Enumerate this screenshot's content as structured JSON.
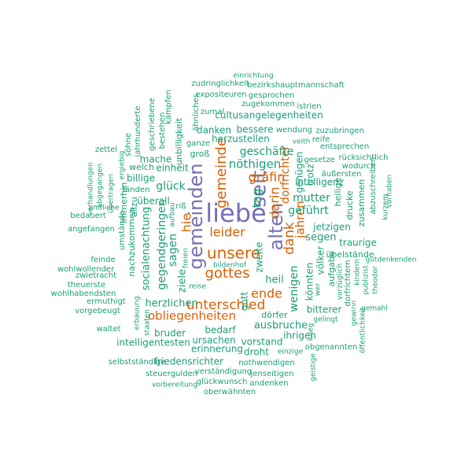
{
  "colors": {
    "purple": "#7570b3",
    "orange": "#d95f02",
    "teal": "#1b9e77",
    "background": "#ffffff"
  },
  "words": [
    {
      "text": "liebe",
      "weight": 30,
      "color": "purple",
      "rotate": false
    },
    {
      "text": "seit",
      "weight": 24,
      "color": "purple",
      "rotate": true
    },
    {
      "text": "gemeinden",
      "weight": 22,
      "color": "purple",
      "rotate": true
    },
    {
      "text": "alten",
      "weight": 22,
      "color": "purple",
      "rotate": true
    },
    {
      "text": "unsere",
      "weight": 18,
      "color": "orange",
      "rotate": false
    },
    {
      "text": "gemeinde",
      "weight": 16,
      "color": "orange",
      "rotate": true
    },
    {
      "text": "gottes",
      "weight": 16,
      "color": "orange",
      "rotate": false
    },
    {
      "text": "unterschied",
      "weight": 15,
      "color": "orange",
      "rotate": false
    },
    {
      "text": "dank",
      "weight": 15,
      "color": "orange",
      "rotate": true
    },
    {
      "text": "leider",
      "weight": 14,
      "color": "orange",
      "rotate": false
    },
    {
      "text": "ende",
      "weight": 14,
      "color": "orange",
      "rotate": false
    },
    {
      "text": "darin",
      "weight": 14,
      "color": "orange",
      "rotate": true
    },
    {
      "text": "gräfin",
      "weight": 14,
      "color": "orange",
      "rotate": false
    },
    {
      "text": "hie",
      "weight": 14,
      "color": "orange",
      "rotate": true
    },
    {
      "text": "obliegenheiten",
      "weight": 13,
      "color": "orange",
      "rotate": false
    },
    {
      "text": "jahren",
      "weight": 13,
      "color": "orange",
      "rotate": true
    },
    {
      "text": "dorfrichter",
      "weight": 12,
      "color": "orange",
      "rotate": true
    },
    {
      "text": "tag",
      "weight": 13,
      "color": "teal",
      "rotate": true
    },
    {
      "text": "nöthigen",
      "weight": 13,
      "color": "teal",
      "rotate": false
    },
    {
      "text": "geschäfte",
      "weight": 12,
      "color": "teal",
      "rotate": false
    },
    {
      "text": "glück",
      "weight": 12,
      "color": "teal",
      "rotate": false
    },
    {
      "text": "geführt",
      "weight": 12,
      "color": "teal",
      "rotate": false
    },
    {
      "text": "mutter",
      "weight": 12,
      "color": "teal",
      "rotate": false
    },
    {
      "text": "wenigen",
      "weight": 12,
      "color": "teal",
      "rotate": true
    },
    {
      "text": "gegendgeringen",
      "weight": 12,
      "color": "teal",
      "rotate": true
    },
    {
      "text": "sagen",
      "weight": 12,
      "color": "teal",
      "rotate": true
    },
    {
      "text": "segen",
      "weight": 11,
      "color": "teal",
      "rotate": false
    },
    {
      "text": "ziele",
      "weight": 11,
      "color": "teal",
      "rotate": true
    },
    {
      "text": "heil",
      "weight": 11,
      "color": "teal",
      "rotate": false
    },
    {
      "text": "herzlichen",
      "weight": 11,
      "color": "teal",
      "rotate": false
    },
    {
      "text": "ausbruche",
      "weight": 11,
      "color": "teal",
      "rotate": false
    },
    {
      "text": "socialenachtung",
      "weight": 11,
      "color": "teal",
      "rotate": true
    },
    {
      "text": "intelligentesten",
      "weight": 10,
      "color": "teal",
      "rotate": false
    },
    {
      "text": "vorstand",
      "weight": 10,
      "color": "teal",
      "rotate": false
    },
    {
      "text": "überall",
      "weight": 10,
      "color": "teal",
      "rotate": false
    },
    {
      "text": "herzustellen",
      "weight": 10,
      "color": "teal",
      "rotate": false
    },
    {
      "text": "bessere",
      "weight": 10,
      "color": "teal",
      "rotate": false
    },
    {
      "text": "danken",
      "weight": 10,
      "color": "teal",
      "rotate": false
    },
    {
      "text": "cultusangelegenheiten",
      "weight": 10,
      "color": "teal",
      "rotate": false
    },
    {
      "text": "mache",
      "weight": 10,
      "color": "teal",
      "rotate": false
    },
    {
      "text": "einheit",
      "weight": 10,
      "color": "teal",
      "rotate": false
    },
    {
      "text": "billige",
      "weight": 10,
      "color": "teal",
      "rotate": false
    },
    {
      "text": "könnten",
      "weight": 10,
      "color": "teal",
      "rotate": true
    },
    {
      "text": "völker",
      "weight": 10,
      "color": "teal",
      "rotate": true
    },
    {
      "text": "zweite",
      "weight": 10,
      "color": "teal",
      "rotate": true
    },
    {
      "text": "jetzigen",
      "weight": 10,
      "color": "teal",
      "rotate": false
    },
    {
      "text": "traurige",
      "weight": 10,
      "color": "teal",
      "rotate": false
    },
    {
      "text": "bitterer",
      "weight": 10,
      "color": "teal",
      "rotate": false
    },
    {
      "text": "ihrigen",
      "weight": 10,
      "color": "teal",
      "rotate": false
    },
    {
      "text": "dörfer",
      "weight": 9,
      "color": "teal",
      "rotate": false
    },
    {
      "text": "ursachen",
      "weight": 10,
      "color": "teal",
      "rotate": false
    },
    {
      "text": "erinnerung",
      "weight": 10,
      "color": "teal",
      "rotate": false
    },
    {
      "text": "droht",
      "weight": 10,
      "color": "teal",
      "rotate": false
    },
    {
      "text": "friedensrichter",
      "weight": 10,
      "color": "teal",
      "rotate": false
    },
    {
      "text": "bruder",
      "weight": 10,
      "color": "teal",
      "rotate": false
    },
    {
      "text": "bedarf",
      "weight": 10,
      "color": "teal",
      "rotate": false
    },
    {
      "text": "gott",
      "weight": 10,
      "color": "teal",
      "rotate": true
    },
    {
      "text": "intelligenz",
      "weight": 10,
      "color": "teal",
      "rotate": false
    },
    {
      "text": "genügen",
      "weight": 10,
      "color": "teal",
      "rotate": true
    },
    {
      "text": "trotz",
      "weight": 10,
      "color": "teal",
      "rotate": true
    },
    {
      "text": "groß",
      "weight": 9,
      "color": "teal",
      "rotate": false
    },
    {
      "text": "unbilligkeit",
      "weight": 9,
      "color": "teal",
      "rotate": true
    },
    {
      "text": "übelstände",
      "weight": 9,
      "color": "teal",
      "rotate": false
    },
    {
      "text": "aufgabe",
      "weight": 9,
      "color": "teal",
      "rotate": true
    },
    {
      "text": "heilige",
      "weight": 9,
      "color": "teal",
      "rotate": true
    },
    {
      "text": "drucke",
      "weight": 9,
      "color": "teal",
      "rotate": true
    },
    {
      "text": "zusammen",
      "weight": 9,
      "color": "teal",
      "rotate": true
    },
    {
      "text": "abzuschreiben",
      "weight": 8,
      "color": "teal",
      "rotate": true
    },
    {
      "text": "nachzukommen",
      "weight": 9,
      "color": "teal",
      "rotate": true
    },
    {
      "text": "allzu",
      "weight": 9,
      "color": "teal",
      "rotate": true
    },
    {
      "text": "immerhin",
      "weight": 9,
      "color": "teal",
      "rotate": true
    },
    {
      "text": "welch",
      "weight": 9,
      "color": "teal",
      "rotate": false
    },
    {
      "text": "fänden",
      "weight": 8,
      "color": "teal",
      "rotate": false
    },
    {
      "text": "ganze",
      "weight": 8,
      "color": "teal",
      "rotate": false
    },
    {
      "text": "wendung",
      "weight": 8,
      "color": "teal",
      "rotate": false
    },
    {
      "text": "zuzubringen",
      "weight": 8,
      "color": "teal",
      "rotate": false
    },
    {
      "text": "reife",
      "weight": 8,
      "color": "teal",
      "rotate": false
    },
    {
      "text": "veith",
      "weight": 7,
      "color": "teal",
      "rotate": false
    },
    {
      "text": "entsprechen",
      "weight": 8,
      "color": "teal",
      "rotate": false
    },
    {
      "text": "gesetze",
      "weight": 8,
      "color": "teal",
      "rotate": false
    },
    {
      "text": "rücksichtlich",
      "weight": 8,
      "color": "teal",
      "rotate": false
    },
    {
      "text": "äußersten",
      "weight": 8,
      "color": "teal",
      "rotate": false
    },
    {
      "text": "wodurch",
      "weight": 8,
      "color": "teal",
      "rotate": false
    },
    {
      "text": "zudringlichkeit",
      "weight": 8,
      "color": "teal",
      "rotate": false
    },
    {
      "text": "bezirkshauptmannschaft",
      "weight": 8,
      "color": "teal",
      "rotate": false
    },
    {
      "text": "einrichtung",
      "weight": 7,
      "color": "teal",
      "rotate": false
    },
    {
      "text": "expositeuren",
      "weight": 8,
      "color": "teal",
      "rotate": false
    },
    {
      "text": "gesprochen",
      "weight": 8,
      "color": "teal",
      "rotate": false
    },
    {
      "text": "zugekommen",
      "weight": 8,
      "color": "teal",
      "rotate": false
    },
    {
      "text": "istrien",
      "weight": 8,
      "color": "teal",
      "rotate": false
    },
    {
      "text": "zumal",
      "weight": 8,
      "color": "teal",
      "rotate": false
    },
    {
      "text": "ähnliches",
      "weight": 8,
      "color": "teal",
      "rotate": true
    },
    {
      "text": "kämpfen",
      "weight": 8,
      "color": "teal",
      "rotate": true
    },
    {
      "text": "geschriebene",
      "weight": 8,
      "color": "teal",
      "rotate": true
    },
    {
      "text": "bestehen",
      "weight": 8,
      "color": "teal",
      "rotate": true
    },
    {
      "text": "söhne",
      "weight": 8,
      "color": "teal",
      "rotate": true
    },
    {
      "text": "jahrhunderte",
      "weight": 8,
      "color": "teal",
      "rotate": true
    },
    {
      "text": "ergiebig",
      "weight": 7,
      "color": "teal",
      "rotate": true
    },
    {
      "text": "zettel",
      "weight": 8,
      "color": "teal",
      "rotate": false
    },
    {
      "text": "verhandlungen",
      "weight": 7,
      "color": "teal",
      "rotate": true
    },
    {
      "text": "abgegangen",
      "weight": 7,
      "color": "teal",
      "rotate": true
    },
    {
      "text": "übertragen",
      "weight": 7,
      "color": "teal",
      "rotate": true
    },
    {
      "text": "amtliche",
      "weight": 7,
      "color": "teal",
      "rotate": false
    },
    {
      "text": "bedauert",
      "weight": 8,
      "color": "teal",
      "rotate": false
    },
    {
      "text": "angefangen",
      "weight": 8,
      "color": "teal",
      "rotate": false
    },
    {
      "text": "feinde",
      "weight": 8,
      "color": "teal",
      "rotate": false
    },
    {
      "text": "wohlwollender",
      "weight": 8,
      "color": "teal",
      "rotate": false
    },
    {
      "text": "zwietracht",
      "weight": 8,
      "color": "teal",
      "rotate": false
    },
    {
      "text": "theuerste",
      "weight": 8,
      "color": "teal",
      "rotate": false
    },
    {
      "text": "wohlhabendsten",
      "weight": 8,
      "color": "teal",
      "rotate": false
    },
    {
      "text": "ermuthigt",
      "weight": 8,
      "color": "teal",
      "rotate": false
    },
    {
      "text": "vorgebeugt",
      "weight": 8,
      "color": "teal",
      "rotate": false
    },
    {
      "text": "waltet",
      "weight": 8,
      "color": "teal",
      "rotate": false
    },
    {
      "text": "umstände",
      "weight": 8,
      "color": "teal",
      "rotate": true
    },
    {
      "text": "erbauung",
      "weight": 7,
      "color": "teal",
      "rotate": true
    },
    {
      "text": "staaten",
      "weight": 7,
      "color": "teal",
      "rotate": true
    },
    {
      "text": "selbstständige",
      "weight": 8,
      "color": "teal",
      "rotate": false
    },
    {
      "text": "steuergulden",
      "weight": 8,
      "color": "teal",
      "rotate": false
    },
    {
      "text": "verständigung",
      "weight": 8,
      "color": "teal",
      "rotate": false
    },
    {
      "text": "jenseitigen",
      "weight": 8,
      "color": "teal",
      "rotate": false
    },
    {
      "text": "vorbereitung",
      "weight": 7,
      "color": "teal",
      "rotate": false
    },
    {
      "text": "glückwunsch",
      "weight": 8,
      "color": "teal",
      "rotate": false
    },
    {
      "text": "andenken",
      "weight": 8,
      "color": "teal",
      "rotate": false
    },
    {
      "text": "nothwendigen",
      "weight": 8,
      "color": "teal",
      "rotate": false
    },
    {
      "text": "einzige",
      "weight": 7,
      "color": "teal",
      "rotate": false
    },
    {
      "text": "obgenannten",
      "weight": 8,
      "color": "teal",
      "rotate": false
    },
    {
      "text": "oberwähnten",
      "weight": 8,
      "color": "teal",
      "rotate": false
    },
    {
      "text": "geistige",
      "weight": 7,
      "color": "teal",
      "rotate": true
    },
    {
      "text": "krieg",
      "weight": 7,
      "color": "teal",
      "rotate": true
    },
    {
      "text": "gelingt",
      "weight": 7,
      "color": "teal",
      "rotate": false
    },
    {
      "text": "gewinn",
      "weight": 7,
      "color": "teal",
      "rotate": true
    },
    {
      "text": "öffentlichkeit",
      "weight": 7,
      "color": "teal",
      "rotate": true
    },
    {
      "text": "gemahl",
      "weight": 7,
      "color": "teal",
      "rotate": false
    },
    {
      "text": "theodor",
      "weight": 7,
      "color": "teal",
      "rotate": true
    },
    {
      "text": "publizist",
      "weight": 7,
      "color": "teal",
      "rotate": true
    },
    {
      "text": "kindern",
      "weight": 7,
      "color": "teal",
      "rotate": true
    },
    {
      "text": "dorfrichtern",
      "weight": 8,
      "color": "teal",
      "rotate": true
    },
    {
      "text": "vorzüglich",
      "weight": 7,
      "color": "teal",
      "rotate": true
    },
    {
      "text": "gutdenkenden",
      "weight": 7,
      "color": "teal",
      "rotate": false
    },
    {
      "text": "wer",
      "weight": 7,
      "color": "teal",
      "rotate": true
    },
    {
      "text": "kurzem",
      "weight": 7,
      "color": "teal",
      "rotate": true
    },
    {
      "text": "vorhaben",
      "weight": 7,
      "color": "teal",
      "rotate": true
    },
    {
      "text": "bildenhof",
      "weight": 7,
      "color": "teal",
      "rotate": false
    },
    {
      "text": "reise",
      "weight": 7,
      "color": "teal",
      "rotate": false
    },
    {
      "text": "freien",
      "weight": 7,
      "color": "teal",
      "rotate": true
    },
    {
      "text": "aufbau",
      "weight": 7,
      "color": "teal",
      "rotate": true
    },
    {
      "text": "riß",
      "weight": 8,
      "color": "teal",
      "rotate": false
    }
  ]
}
